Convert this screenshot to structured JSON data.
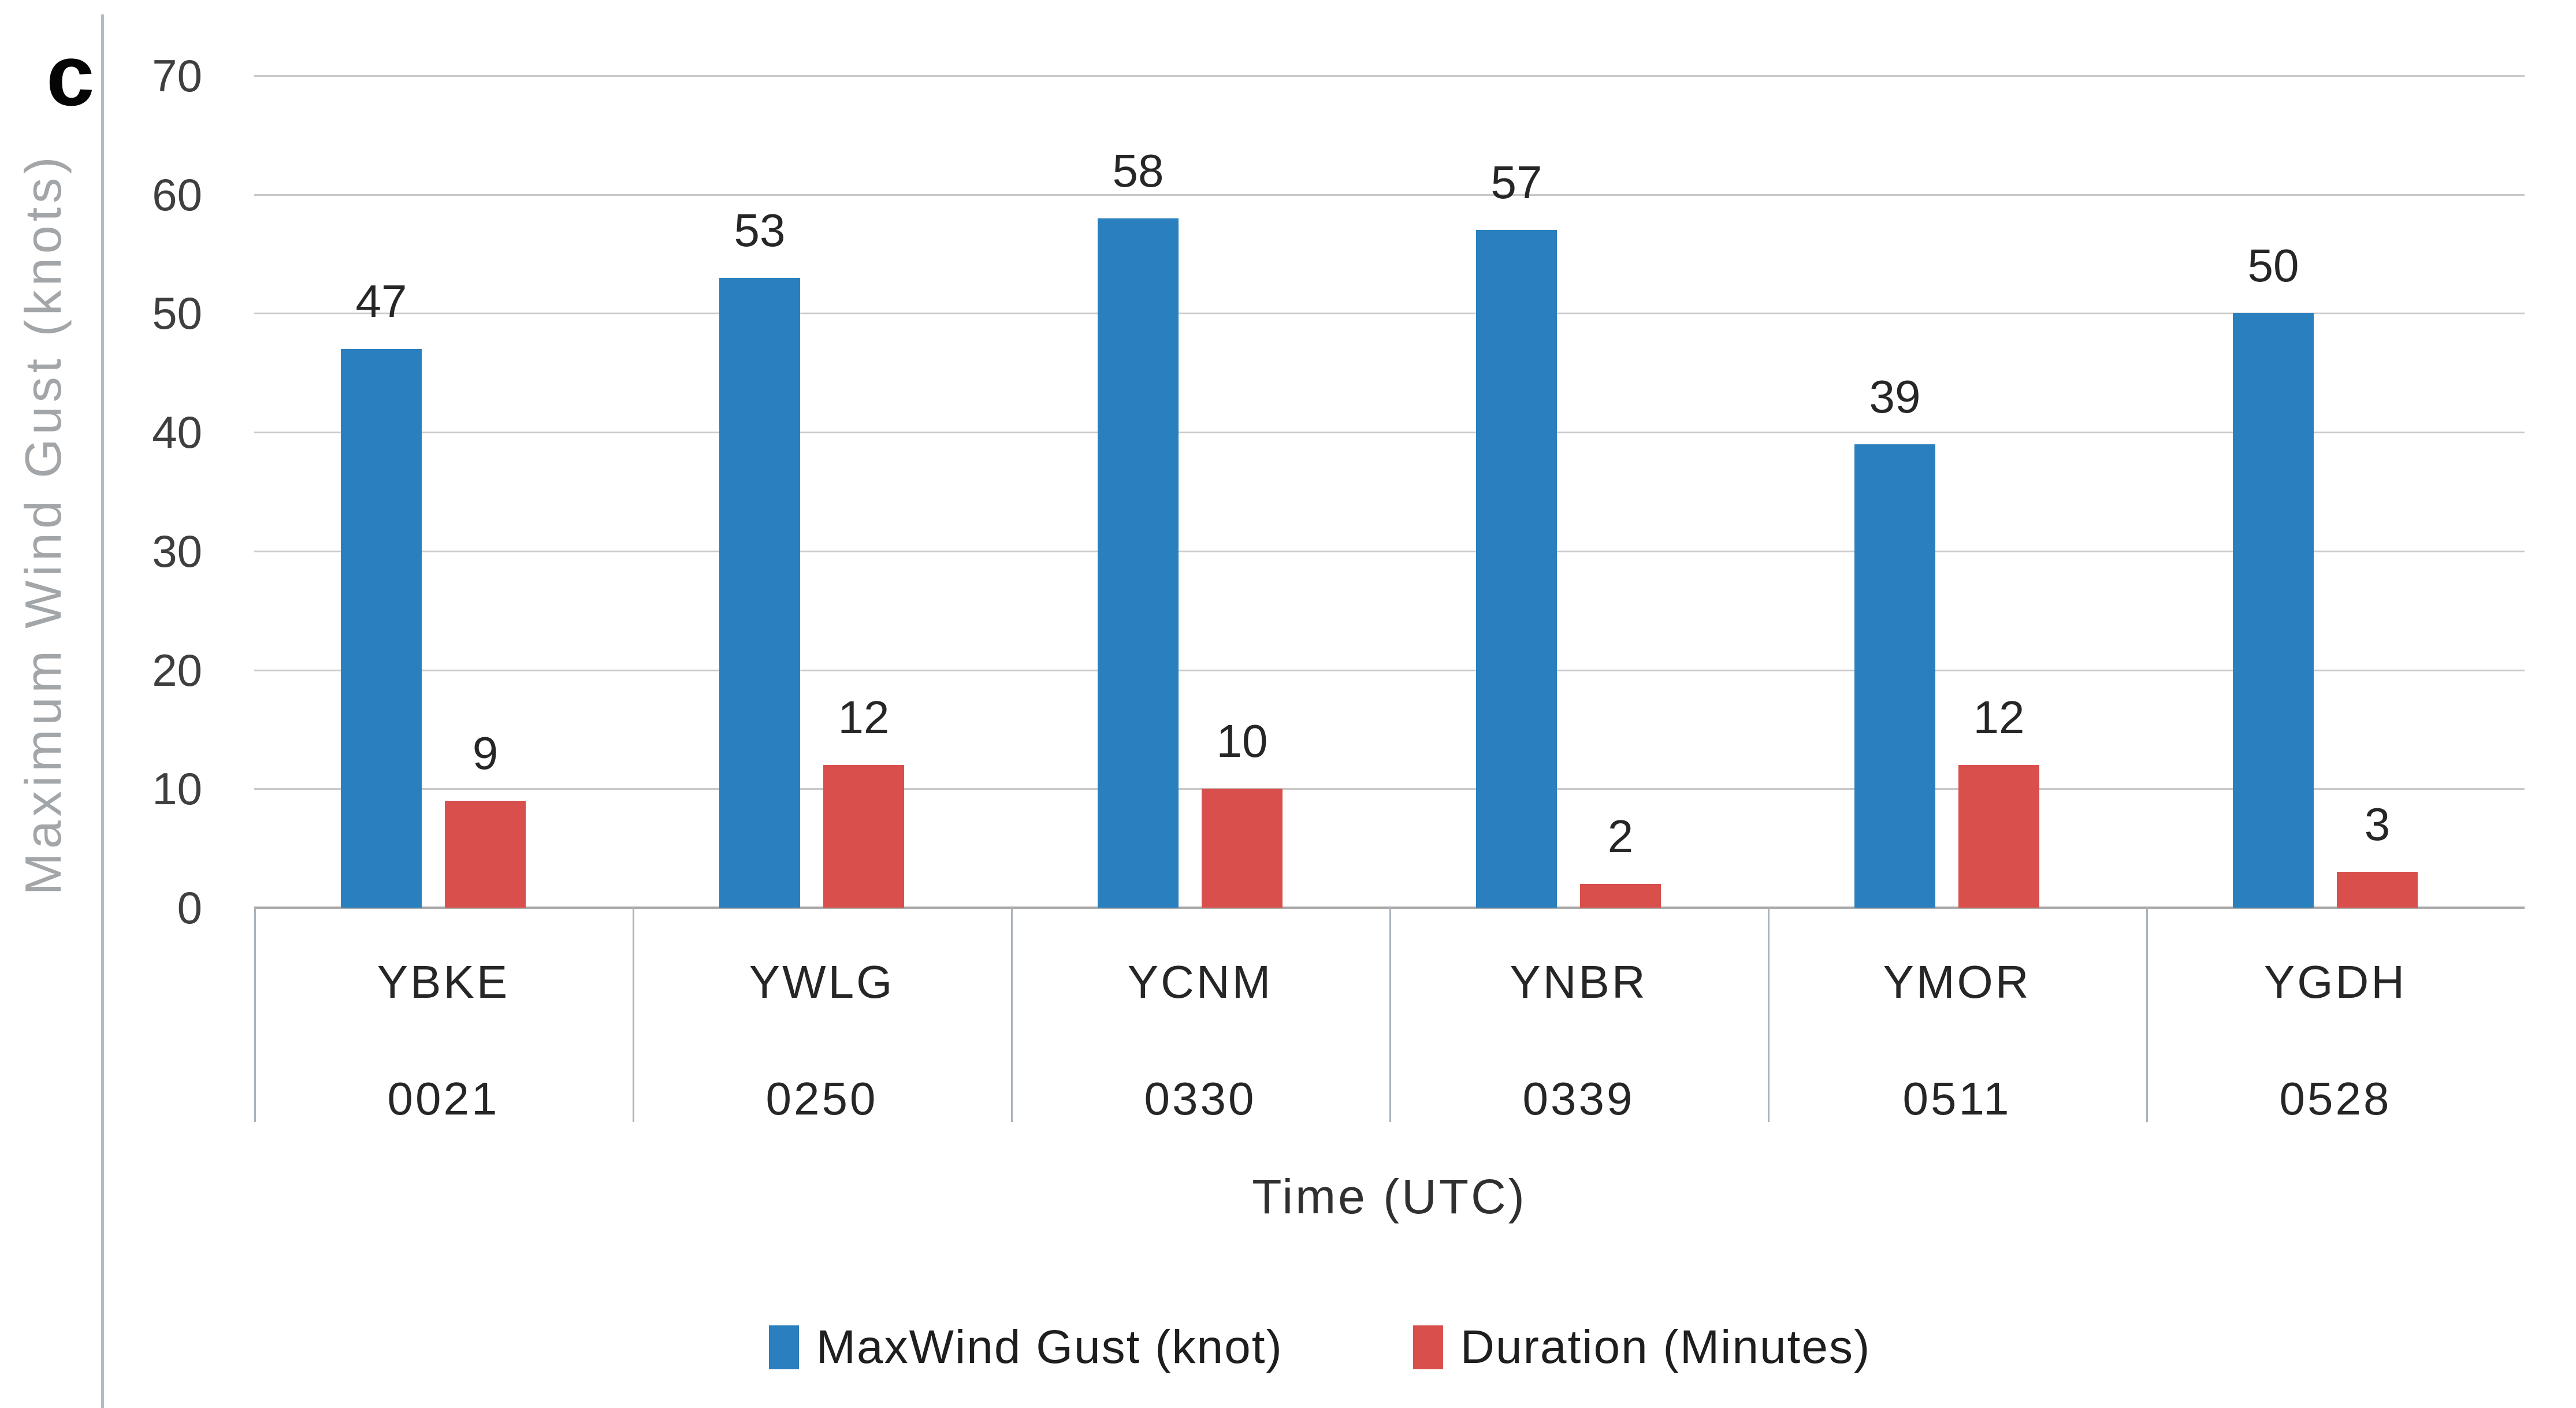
{
  "figure": {
    "panel_label": "c",
    "y_axis_title": "Maximum Wind Gust (knots)",
    "x_axis_title": "Time (UTC)"
  },
  "chart_data": {
    "type": "bar",
    "title": "",
    "categories": [
      "YBKE",
      "YWLG",
      "YCNM",
      "YNBR",
      "YMOR",
      "YGDH"
    ],
    "category_times": [
      "0021",
      "0250",
      "0330",
      "0339",
      "0511",
      "0528"
    ],
    "series": [
      {
        "name": "MaxWind Gust (knot)",
        "color": "#2a7fbe",
        "values": [
          47,
          53,
          58,
          57,
          39,
          50
        ]
      },
      {
        "name": "Duration (Minutes)",
        "color": "#d94f4c",
        "values": [
          9,
          12,
          10,
          2,
          12,
          3
        ]
      }
    ],
    "xlabel": "Time (UTC)",
    "ylabel": "Maximum Wind Gust (knots)",
    "ylim": [
      0,
      70
    ],
    "yticks": [
      0,
      10,
      20,
      30,
      40,
      50,
      60,
      70
    ],
    "grid": true,
    "legend_position": "bottom"
  }
}
